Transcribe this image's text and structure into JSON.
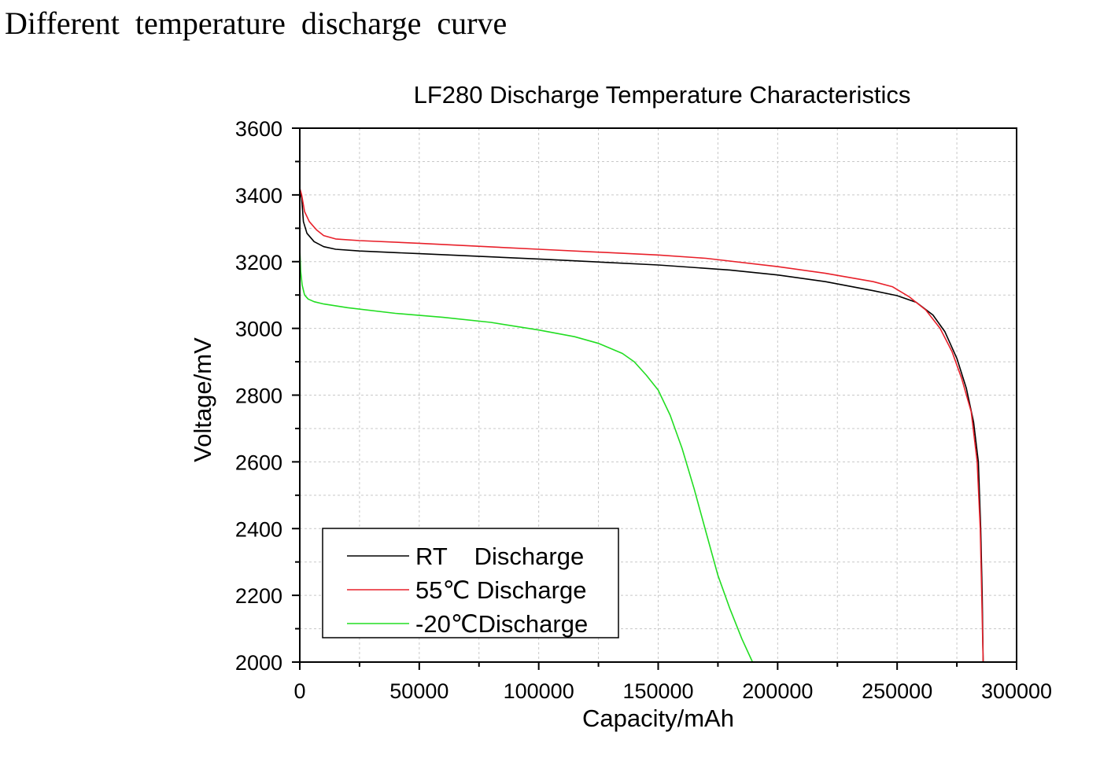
{
  "page": {
    "heading": "Different  temperature  discharge  curve"
  },
  "chart_data": {
    "type": "line",
    "title": "LF280 Discharge Temperature Characteristics",
    "xlabel": "Capacity/mAh",
    "ylabel": "Voltage/mV",
    "xlim": [
      0,
      300000
    ],
    "ylim": [
      2000,
      3600
    ],
    "xticks": [
      0,
      50000,
      100000,
      150000,
      200000,
      250000,
      300000
    ],
    "yticks": [
      2000,
      2200,
      2400,
      2600,
      2800,
      3000,
      3200,
      3400,
      3600
    ],
    "grid": true,
    "legend_position": "bottom-left",
    "series": [
      {
        "name": "RT    Discharge",
        "color": "#000000",
        "points": [
          [
            0,
            3415
          ],
          [
            800,
            3390
          ],
          [
            1500,
            3320
          ],
          [
            3000,
            3285
          ],
          [
            6000,
            3260
          ],
          [
            10000,
            3245
          ],
          [
            15000,
            3237
          ],
          [
            25000,
            3232
          ],
          [
            50000,
            3224
          ],
          [
            100000,
            3208
          ],
          [
            150000,
            3190
          ],
          [
            180000,
            3175
          ],
          [
            200000,
            3160
          ],
          [
            220000,
            3140
          ],
          [
            240000,
            3113
          ],
          [
            250000,
            3098
          ],
          [
            258000,
            3078
          ],
          [
            265000,
            3040
          ],
          [
            270000,
            2990
          ],
          [
            275000,
            2910
          ],
          [
            279000,
            2820
          ],
          [
            282000,
            2720
          ],
          [
            284000,
            2600
          ],
          [
            285000,
            2400
          ],
          [
            285600,
            2200
          ],
          [
            286000,
            2000
          ]
        ]
      },
      {
        "name": "55℃ Discharge",
        "color": "#e8202a",
        "points": [
          [
            0,
            3420
          ],
          [
            800,
            3400
          ],
          [
            2000,
            3350
          ],
          [
            4000,
            3320
          ],
          [
            7000,
            3295
          ],
          [
            10000,
            3278
          ],
          [
            15000,
            3268
          ],
          [
            25000,
            3263
          ],
          [
            50000,
            3255
          ],
          [
            100000,
            3237
          ],
          [
            150000,
            3220
          ],
          [
            170000,
            3210
          ],
          [
            200000,
            3185
          ],
          [
            220000,
            3165
          ],
          [
            240000,
            3140
          ],
          [
            248000,
            3125
          ],
          [
            255000,
            3095
          ],
          [
            262000,
            3055
          ],
          [
            268000,
            3000
          ],
          [
            273000,
            2930
          ],
          [
            277000,
            2850
          ],
          [
            281000,
            2750
          ],
          [
            283500,
            2600
          ],
          [
            284800,
            2400
          ],
          [
            285400,
            2200
          ],
          [
            286000,
            2000
          ]
        ]
      },
      {
        "name": "-20℃Discharge",
        "color": "#22dd22",
        "points": [
          [
            0,
            3240
          ],
          [
            400,
            3170
          ],
          [
            1000,
            3130
          ],
          [
            2000,
            3100
          ],
          [
            3500,
            3088
          ],
          [
            6000,
            3080
          ],
          [
            10000,
            3073
          ],
          [
            20000,
            3062
          ],
          [
            40000,
            3045
          ],
          [
            60000,
            3033
          ],
          [
            80000,
            3018
          ],
          [
            100000,
            2995
          ],
          [
            115000,
            2975
          ],
          [
            125000,
            2955
          ],
          [
            135000,
            2925
          ],
          [
            140000,
            2900
          ],
          [
            145000,
            2860
          ],
          [
            150000,
            2815
          ],
          [
            155000,
            2740
          ],
          [
            160000,
            2640
          ],
          [
            165000,
            2520
          ],
          [
            170000,
            2390
          ],
          [
            175000,
            2260
          ],
          [
            180000,
            2160
          ],
          [
            185000,
            2070
          ],
          [
            189500,
            2000
          ]
        ]
      }
    ]
  }
}
